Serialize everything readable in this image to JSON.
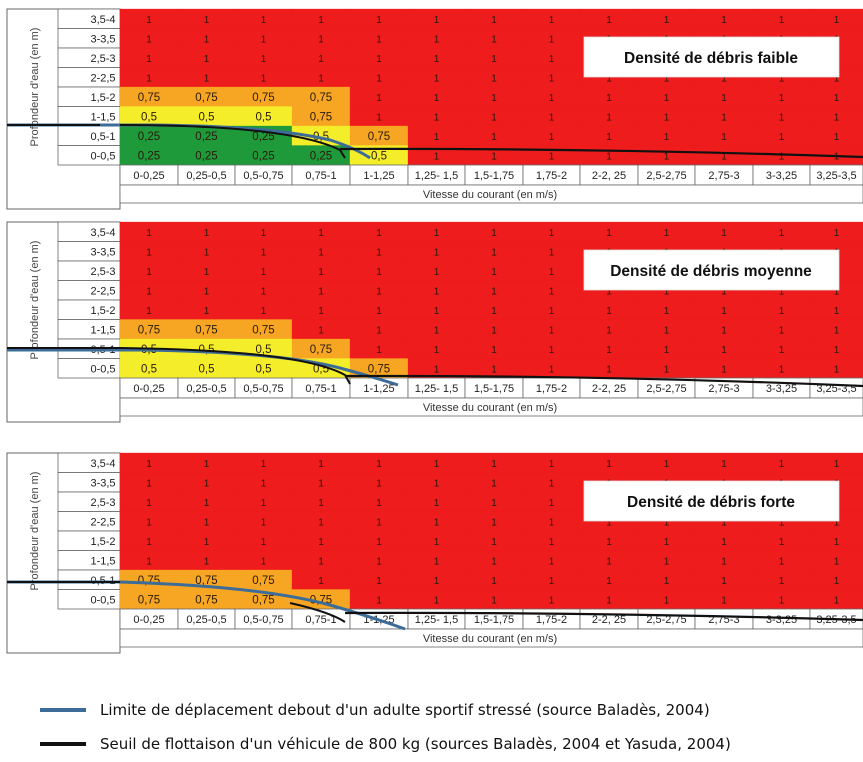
{
  "chart_data": [
    {
      "type": "heatmap",
      "title": "Densité de débris faible",
      "ylabel": "Profondeur d'eau (en m)",
      "xlabel": "Vitesse du courant (en m/s)",
      "x_categories": [
        "0-0,25",
        "0,25-0,5",
        "0,5-0,75",
        "0,75-1",
        "1-1,25",
        "1,25- 1,5",
        "1,5-1,75",
        "1,75-2",
        "2-2, 25",
        "2,5-2,75",
        "2,75-3",
        "3-3,25",
        "3,25-3,5"
      ],
      "y_categories": [
        "3,5-4",
        "3-3,5",
        "2,5-3",
        "2-2,5",
        "1,5-2",
        "1-1,5",
        "0,5-1",
        "0-0,5"
      ],
      "values": [
        [
          "1",
          "1",
          "1",
          "1",
          "1",
          "1",
          "1",
          "1",
          "1",
          "1",
          "1",
          "1",
          "1"
        ],
        [
          "1",
          "1",
          "1",
          "1",
          "1",
          "1",
          "1",
          "1",
          "1",
          "1",
          "1",
          "1",
          "1"
        ],
        [
          "1",
          "1",
          "1",
          "1",
          "1",
          "1",
          "1",
          "1",
          "1",
          "1",
          "1",
          "1",
          "1"
        ],
        [
          "1",
          "1",
          "1",
          "1",
          "1",
          "1",
          "1",
          "1",
          "1",
          "1",
          "1",
          "1",
          "1"
        ],
        [
          "0,75",
          "0,75",
          "0,75",
          "0,75",
          "1",
          "1",
          "1",
          "1",
          "1",
          "1",
          "1",
          "1",
          "1"
        ],
        [
          "0,5",
          "0,5",
          "0,5",
          "0,75",
          "1",
          "1",
          "1",
          "1",
          "1",
          "1",
          "1",
          "1",
          "1"
        ],
        [
          "0,25",
          "0,25",
          "0,25",
          "0,5",
          "0,75",
          "1",
          "1",
          "1",
          "1",
          "1",
          "1",
          "1",
          "1"
        ],
        [
          "0,25",
          "0,25",
          "0,25",
          "0,25",
          "0,5",
          "1",
          "1",
          "1",
          "1",
          "1",
          "1",
          "1",
          "1"
        ]
      ]
    },
    {
      "type": "heatmap",
      "title": "Densité de débris moyenne",
      "ylabel": "Profondeur d'eau (en m)",
      "xlabel": "Vitesse du courant (en m/s)",
      "x_categories": [
        "0-0,25",
        "0,25-0,5",
        "0,5-0,75",
        "0,75-1",
        "1-1,25",
        "1,25- 1,5",
        "1,5-1,75",
        "1,75-2",
        "2-2, 25",
        "2,5-2,75",
        "2,75-3",
        "3-3,25",
        "3,25-3,5"
      ],
      "y_categories": [
        "3,5-4",
        "3-3,5",
        "2,5-3",
        "2-2,5",
        "1,5-2",
        "1-1,5",
        "0,5-1",
        "0-0,5"
      ],
      "values": [
        [
          "1",
          "1",
          "1",
          "1",
          "1",
          "1",
          "1",
          "1",
          "1",
          "1",
          "1",
          "1",
          "1"
        ],
        [
          "1",
          "1",
          "1",
          "1",
          "1",
          "1",
          "1",
          "1",
          "1",
          "1",
          "1",
          "1",
          "1"
        ],
        [
          "1",
          "1",
          "1",
          "1",
          "1",
          "1",
          "1",
          "1",
          "1",
          "1",
          "1",
          "1",
          "1"
        ],
        [
          "1",
          "1",
          "1",
          "1",
          "1",
          "1",
          "1",
          "1",
          "1",
          "1",
          "1",
          "1",
          "1"
        ],
        [
          "1",
          "1",
          "1",
          "1",
          "1",
          "1",
          "1",
          "1",
          "1",
          "1",
          "1",
          "1",
          "1"
        ],
        [
          "0,75",
          "0,75",
          "0,75",
          "1",
          "1",
          "1",
          "1",
          "1",
          "1",
          "1",
          "1",
          "1",
          "1"
        ],
        [
          "0,5",
          "0,5",
          "0,5",
          "0,75",
          "1",
          "1",
          "1",
          "1",
          "1",
          "1",
          "1",
          "1",
          "1"
        ],
        [
          "0,5",
          "0,5",
          "0,5",
          "0,5",
          "0,75",
          "1",
          "1",
          "1",
          "1",
          "1",
          "1",
          "1",
          "1"
        ]
      ]
    },
    {
      "type": "heatmap",
      "title": "Densité de débris forte",
      "ylabel": "Profondeur d'eau (en m)",
      "xlabel": "Vitesse du courant (en m/s)",
      "x_categories": [
        "0-0,25",
        "0,25-0,5",
        "0,5-0,75",
        "0,75-1",
        "1-1,25",
        "1,25- 1,5",
        "1,5-1,75",
        "1,75-2",
        "2-2, 25",
        "2,5-2,75",
        "2,75-3",
        "3-3,25",
        "3,25-3,5"
      ],
      "y_categories": [
        "3,5-4",
        "3-3,5",
        "2,5-3",
        "2-2,5",
        "1,5-2",
        "1-1,5",
        "0,5-1",
        "0-0,5"
      ],
      "values": [
        [
          "1",
          "1",
          "1",
          "1",
          "1",
          "1",
          "1",
          "1",
          "1",
          "1",
          "1",
          "1",
          "1"
        ],
        [
          "1",
          "1",
          "1",
          "1",
          "1",
          "1",
          "1",
          "1",
          "1",
          "1",
          "1",
          "1",
          "1"
        ],
        [
          "1",
          "1",
          "1",
          "1",
          "1",
          "1",
          "1",
          "1",
          "1",
          "1",
          "1",
          "1",
          "1"
        ],
        [
          "1",
          "1",
          "1",
          "1",
          "1",
          "1",
          "1",
          "1",
          "1",
          "1",
          "1",
          "1",
          "1"
        ],
        [
          "1",
          "1",
          "1",
          "1",
          "1",
          "1",
          "1",
          "1",
          "1",
          "1",
          "1",
          "1",
          "1"
        ],
        [
          "1",
          "1",
          "1",
          "1",
          "1",
          "1",
          "1",
          "1",
          "1",
          "1",
          "1",
          "1",
          "1"
        ],
        [
          "0,75",
          "0,75",
          "0,75",
          "1",
          "1",
          "1",
          "1",
          "1",
          "1",
          "1",
          "1",
          "1",
          "1"
        ],
        [
          "0,75",
          "0,75",
          "0,75",
          "0,75",
          "1",
          "1",
          "1",
          "1",
          "1",
          "1",
          "1",
          "1",
          "1"
        ]
      ]
    }
  ],
  "color_scale": {
    "0,25": "#1f9a3a",
    "0,5": "#f4ee2a",
    "0,75": "#f7a623",
    "1": "#ee1c1c"
  },
  "line_colors": {
    "standing_limit": "#3d6c98",
    "vehicle_flotation": "#111111"
  },
  "legend": {
    "standing_limit": "Limite de déplacement debout d'un adulte sportif stressé (source Baladès, 2004)",
    "vehicle_flotation": "Seuil de flottaison d'un véhicule de 800 kg (sources Baladès, 2004 et Yasuda, 2004)"
  }
}
